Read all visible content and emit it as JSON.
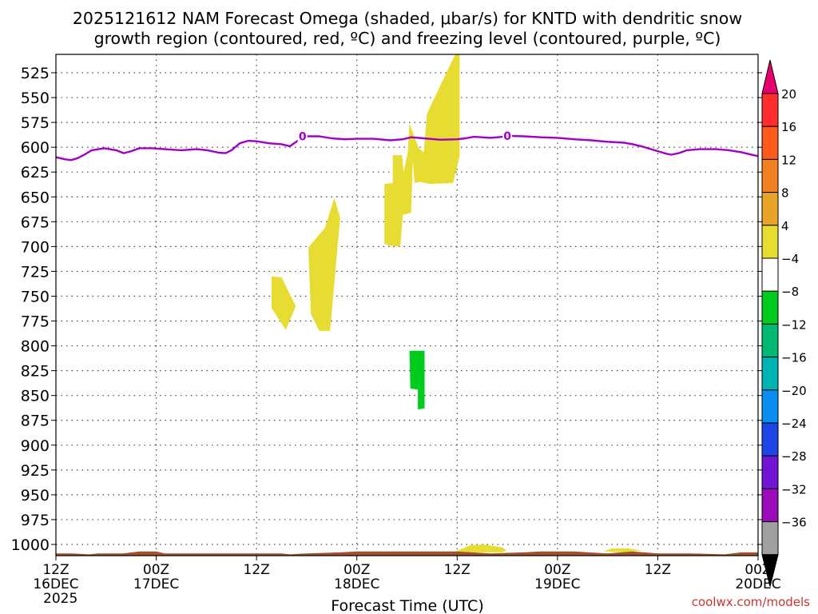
{
  "chart_data": {
    "type": "heatmap",
    "title_line1": "2025121612 NAM Forecast Omega (shaded, μbar/s) for KNTD with dendritic snow",
    "title_line2": "growth region (contoured, red, ºC) and freezing level (contoured, purple, ºC)",
    "xlabel": "Forecast Time (UTC)",
    "watermark": "coolwx.com/models",
    "x_ticks": [
      {
        "h": 0,
        "l1": "12Z",
        "l2": "16DEC",
        "l3": "2025"
      },
      {
        "h": 12,
        "l1": "00Z",
        "l2": "17DEC",
        "l3": ""
      },
      {
        "h": 24,
        "l1": "12Z",
        "l2": "",
        "l3": ""
      },
      {
        "h": 36,
        "l1": "00Z",
        "l2": "18DEC",
        "l3": ""
      },
      {
        "h": 48,
        "l1": "12Z",
        "l2": "",
        "l3": ""
      },
      {
        "h": 60,
        "l1": "00Z",
        "l2": "19DEC",
        "l3": ""
      },
      {
        "h": 72,
        "l1": "12Z",
        "l2": "",
        "l3": ""
      },
      {
        "h": 84,
        "l1": "00Z",
        "l2": "20DEC",
        "l3": ""
      }
    ],
    "xlim_hours": [
      0,
      84
    ],
    "ylim_hpa": [
      1012,
      505
    ],
    "y_ticks": [
      525,
      550,
      575,
      600,
      625,
      650,
      675,
      700,
      725,
      750,
      775,
      800,
      825,
      850,
      875,
      900,
      925,
      950,
      975,
      1000
    ],
    "grid": true,
    "colorbar": {
      "placement": "right",
      "labels": [
        "20",
        "16",
        "12",
        "8",
        "4",
        "−4",
        "−8",
        "−12",
        "−16",
        "−20",
        "−24",
        "−28",
        "−32",
        "−36"
      ],
      "top_cap_color": "#e8006e",
      "bottom_cap_color": "#000000",
      "colors": [
        "#ff2d2d",
        "#ff5a1e",
        "#f08020",
        "#e8a428",
        "#e8dc30",
        "#ffffff",
        "#00cc1e",
        "#00b870",
        "#00b4b4",
        "#0a8cf0",
        "#1e46e6",
        "#6e14d2",
        "#9a0ab8",
        "#a0a0a0"
      ]
    },
    "freezing_level": {
      "label": "0",
      "color": "#a000c8",
      "label_hours": [
        29.5,
        54
      ],
      "points": [
        [
          0,
          610
        ],
        [
          1,
          612
        ],
        [
          1.8,
          613
        ],
        [
          2.6,
          611
        ],
        [
          3.5,
          607
        ],
        [
          4.3,
          603
        ],
        [
          5.8,
          601
        ],
        [
          7.2,
          603
        ],
        [
          8.1,
          606
        ],
        [
          9,
          604
        ],
        [
          10,
          601
        ],
        [
          11.5,
          601
        ],
        [
          13,
          602
        ],
        [
          15,
          603
        ],
        [
          16.8,
          602
        ],
        [
          18.1,
          603
        ],
        [
          19.5,
          605.5
        ],
        [
          20.3,
          606
        ],
        [
          21,
          603
        ],
        [
          22,
          596
        ],
        [
          23,
          593.5
        ],
        [
          24,
          594
        ],
        [
          25.5,
          596
        ],
        [
          27,
          597
        ],
        [
          28,
          599
        ],
        [
          29,
          593
        ],
        [
          29.5,
          589
        ],
        [
          31.5,
          589
        ],
        [
          33,
          591
        ],
        [
          34.5,
          592
        ],
        [
          36,
          591.5
        ],
        [
          38,
          591.5
        ],
        [
          40,
          593
        ],
        [
          41.5,
          592
        ],
        [
          42.5,
          590
        ],
        [
          44,
          591
        ],
        [
          46,
          592.5
        ],
        [
          48,
          592
        ],
        [
          49,
          591
        ],
        [
          50,
          589.5
        ],
        [
          52,
          590.5
        ],
        [
          53.5,
          589.5
        ],
        [
          54,
          588.5
        ],
        [
          56,
          589
        ],
        [
          58,
          590
        ],
        [
          60,
          590.5
        ],
        [
          62,
          592
        ],
        [
          64,
          593
        ],
        [
          66,
          594.5
        ],
        [
          68,
          595.5
        ],
        [
          69,
          597
        ],
        [
          70,
          599
        ],
        [
          71,
          601.5
        ],
        [
          72,
          604
        ],
        [
          73,
          606.5
        ],
        [
          73.6,
          607.5
        ],
        [
          74.5,
          606
        ],
        [
          75.5,
          603
        ],
        [
          77,
          602
        ],
        [
          79,
          602
        ],
        [
          80.5,
          603
        ],
        [
          82,
          605
        ],
        [
          83,
          607
        ],
        [
          84,
          609
        ]
      ]
    },
    "omega_regions": [
      {
        "value": 6,
        "color": "#e6dc32",
        "points": [
          [
            25.8,
            730
          ],
          [
            27,
            731
          ],
          [
            28.7,
            760
          ],
          [
            27.5,
            784
          ],
          [
            25.8,
            762
          ]
        ]
      },
      {
        "value": 6,
        "color": "#e6dc32",
        "points": [
          [
            30.2,
            701
          ],
          [
            31.5,
            688
          ],
          [
            32.2,
            681
          ],
          [
            33.3,
            651
          ],
          [
            34,
            671
          ],
          [
            32.8,
            785
          ],
          [
            31.5,
            785
          ],
          [
            30.5,
            768
          ]
        ]
      },
      {
        "value": 6,
        "color": "#e6dc32",
        "points": [
          [
            39.3,
            697
          ],
          [
            39.3,
            637
          ],
          [
            40.3,
            636
          ],
          [
            40.3,
            608
          ],
          [
            41.4,
            608
          ],
          [
            41.6,
            625
          ],
          [
            42.1,
            605
          ],
          [
            42.3,
            576
          ],
          [
            43.4,
            601
          ],
          [
            44,
            605
          ],
          [
            44.4,
            566
          ],
          [
            47.8,
            506
          ],
          [
            48.1,
            505
          ],
          [
            48.3,
            505
          ],
          [
            48.3,
            609
          ],
          [
            47.5,
            636
          ],
          [
            44.8,
            637
          ],
          [
            43.6,
            635
          ],
          [
            42.9,
            636
          ],
          [
            42.7,
            613
          ],
          [
            42.5,
            666
          ],
          [
            41.5,
            668
          ],
          [
            41.2,
            700
          ],
          [
            39.8,
            699
          ]
        ]
      },
      {
        "value": -5,
        "color": "#00cc1e",
        "points": [
          [
            42.3,
            805
          ],
          [
            44.1,
            805
          ],
          [
            44.1,
            863
          ],
          [
            43.3,
            864
          ],
          [
            43.3,
            844
          ],
          [
            42.4,
            843
          ]
        ]
      },
      {
        "value": 5,
        "color": "#e6dc32",
        "points": [
          [
            47.8,
            1007
          ],
          [
            49.5,
            1001
          ],
          [
            51.2,
            1000
          ],
          [
            53.4,
            1003
          ],
          [
            53.9,
            1006
          ],
          [
            53.4,
            1008
          ],
          [
            50,
            1008
          ]
        ]
      },
      {
        "value": 5,
        "color": "#e6dc32",
        "points": [
          [
            65.5,
            1007
          ],
          [
            66.5,
            1004
          ],
          [
            68.5,
            1004
          ],
          [
            70,
            1006
          ],
          [
            68,
            1008
          ]
        ]
      }
    ],
    "terrain": {
      "color": "#a0522d",
      "points": [
        [
          0,
          1009
        ],
        [
          2,
          1009
        ],
        [
          4,
          1010
        ],
        [
          5,
          1009
        ],
        [
          8,
          1009
        ],
        [
          10,
          1007
        ],
        [
          12,
          1007
        ],
        [
          13,
          1009
        ],
        [
          15,
          1009
        ],
        [
          20,
          1009
        ],
        [
          27,
          1009
        ],
        [
          28,
          1010
        ],
        [
          30,
          1009
        ],
        [
          34,
          1008
        ],
        [
          36,
          1007
        ],
        [
          42,
          1007
        ],
        [
          48,
          1007
        ],
        [
          52,
          1009
        ],
        [
          56,
          1008
        ],
        [
          58,
          1007
        ],
        [
          62,
          1007
        ],
        [
          66,
          1009
        ],
        [
          69,
          1007
        ],
        [
          72,
          1009
        ],
        [
          76,
          1009
        ],
        [
          80,
          1010
        ],
        [
          82,
          1008
        ],
        [
          84,
          1008
        ]
      ]
    }
  }
}
